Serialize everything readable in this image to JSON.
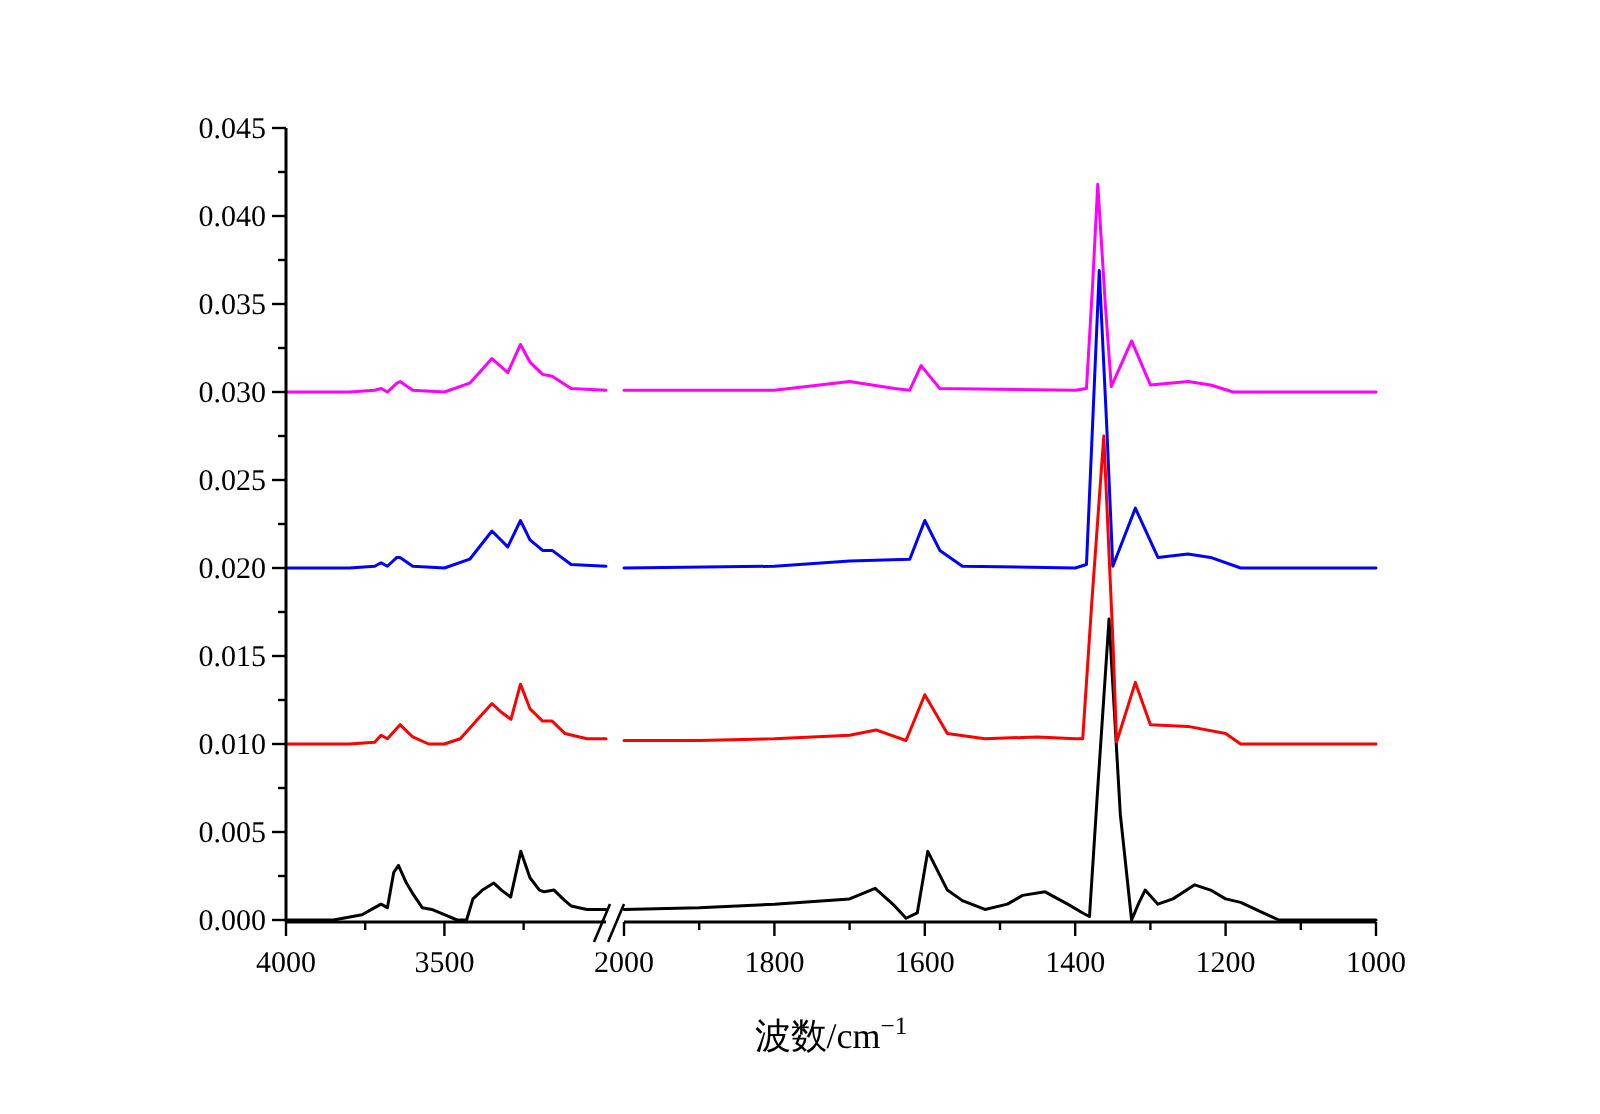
{
  "chart_data": [
    {
      "type": "line",
      "xlim": [
        4000,
        2990
      ],
      "ylim": [
        0,
        0.045
      ],
      "xticks": [
        4000,
        {
          "value": 3750,
          "label": null
        },
        3500,
        {
          "value": 3250,
          "label": null
        }
      ],
      "yticks": [
        {
          "value": 0,
          "label": "0.000"
        },
        {
          "value": 0.0025,
          "label": null
        },
        {
          "value": 0.005,
          "label": "0.005"
        },
        {
          "value": 0.0075,
          "label": null
        },
        {
          "value": 0.01,
          "label": "0.010"
        },
        {
          "value": 0.0125,
          "label": null
        },
        {
          "value": 0.015,
          "label": "0.015"
        },
        {
          "value": 0.0175,
          "label": null
        },
        {
          "value": 0.02,
          "label": "0.020"
        },
        {
          "value": 0.0225,
          "label": null
        },
        {
          "value": 0.025,
          "label": "0.025"
        },
        {
          "value": 0.0275,
          "label": null
        },
        {
          "value": 0.03,
          "label": "0.030"
        },
        {
          "value": 0.0325,
          "label": null
        },
        {
          "value": 0.035,
          "label": "0.035"
        },
        {
          "value": 0.0375,
          "label": null
        },
        {
          "value": 0.04,
          "label": "0.040"
        },
        {
          "value": 0.0425,
          "label": null
        },
        {
          "value": 0.045,
          "label": "0.045"
        }
      ],
      "series": [
        {
          "color": "#000000",
          "x": [
            4000,
            3850,
            3760,
            3720,
            3700,
            3680,
            3660,
            3645,
            3620,
            3600,
            3570,
            3540,
            3500,
            3460,
            3430,
            3410,
            3380,
            3344,
            3320,
            3291,
            3259,
            3230,
            3200,
            3185,
            3154,
            3120,
            3100,
            3050,
            2990
          ],
          "values": [
            0,
            0,
            0.0003,
            0.0007,
            0.0009,
            0.0007,
            0.0027,
            0.0031,
            0.0021,
            0.0015,
            0.0007,
            0.0006,
            0.0003,
            0,
            0,
            0.0012,
            0.0017,
            0.0021,
            0.0017,
            0.0013,
            0.0039,
            0.0024,
            0.0017,
            0.0016,
            0.0017,
            0.0011,
            0.0008,
            0.0006,
            0.0006
          ]
        },
        {
          "color": "#ff0000",
          "x": [
            4000,
            3800,
            3720,
            3700,
            3680,
            3650,
            3640,
            3600,
            3550,
            3500,
            3450,
            3400,
            3350,
            3320,
            3290,
            3260,
            3230,
            3190,
            3160,
            3120,
            3050,
            2990
          ],
          "values": [
            0.01,
            0.01,
            0.0101,
            0.0105,
            0.0103,
            0.0109,
            0.0111,
            0.0104,
            0.01,
            0.01,
            0.0103,
            0.0113,
            0.0123,
            0.0118,
            0.0114,
            0.0134,
            0.012,
            0.0113,
            0.0113,
            0.0106,
            0.0103,
            0.0103
          ]
        },
        {
          "color": "#0000ff",
          "x": [
            4000,
            3800,
            3720,
            3700,
            3680,
            3650,
            3640,
            3600,
            3500,
            3420,
            3350,
            3300,
            3260,
            3230,
            3190,
            3160,
            3100,
            2990
          ],
          "values": [
            0.02,
            0.02,
            0.0201,
            0.0203,
            0.0201,
            0.0206,
            0.0206,
            0.0201,
            0.02,
            0.0205,
            0.0221,
            0.0212,
            0.0227,
            0.0216,
            0.021,
            0.021,
            0.0202,
            0.0201
          ]
        },
        {
          "color": "#ff00ff",
          "x": [
            4000,
            3800,
            3720,
            3700,
            3680,
            3650,
            3640,
            3600,
            3500,
            3420,
            3350,
            3300,
            3260,
            3230,
            3190,
            3160,
            3100,
            2990
          ],
          "values": [
            0.03,
            0.03,
            0.0301,
            0.0302,
            0.03,
            0.0305,
            0.0306,
            0.0301,
            0.03,
            0.0305,
            0.0319,
            0.0311,
            0.0327,
            0.0317,
            0.031,
            0.0309,
            0.0302,
            0.0301
          ]
        }
      ]
    },
    {
      "type": "line",
      "xlim": [
        2000,
        1000
      ],
      "ylim": [
        0,
        0.045
      ],
      "tick_labels": "x",
      "xlabel": "波数/cm$^{−1}$",
      "xticks": [
        2000,
        {
          "value": 1900,
          "label": null
        },
        1800,
        {
          "value": 1700,
          "label": null
        },
        1600,
        {
          "value": 1500,
          "label": null
        },
        1400,
        {
          "value": 1300,
          "label": null
        },
        1200,
        {
          "value": 1100,
          "label": null
        },
        1000
      ],
      "series": [
        {
          "color": "#000000",
          "x": [
            2000,
            1900,
            1800,
            1700,
            1666,
            1640,
            1625,
            1610,
            1596,
            1570,
            1550,
            1520,
            1490,
            1470,
            1440,
            1410,
            1390,
            1381,
            1370,
            1355,
            1340,
            1325,
            1315,
            1307,
            1290,
            1270,
            1241,
            1220,
            1200,
            1180,
            1150,
            1129,
            1000
          ],
          "values": [
            0.0006,
            0.0007,
            0.0009,
            0.0012,
            0.0018,
            0.0008,
            0.0001,
            0.0004,
            0.0039,
            0.0017,
            0.0011,
            0.0006,
            0.0009,
            0.0014,
            0.0016,
            0.0009,
            0.0004,
            0.0002,
            0.0075,
            0.0171,
            0.006,
            0,
            0.001,
            0.0017,
            0.0009,
            0.0012,
            0.002,
            0.0017,
            0.0012,
            0.001,
            0.0004,
            0,
            0
          ]
        },
        {
          "color": "#ff0000",
          "x": [
            2000,
            1900,
            1800,
            1700,
            1665,
            1625,
            1600,
            1570,
            1520,
            1450,
            1400,
            1390,
            1378,
            1362,
            1350,
            1345,
            1320,
            1300,
            1250,
            1200,
            1180,
            1000
          ],
          "values": [
            0.0102,
            0.0102,
            0.0103,
            0.0105,
            0.0108,
            0.0102,
            0.0128,
            0.0106,
            0.0103,
            0.0104,
            0.0103,
            0.0103,
            0.018,
            0.0275,
            0.016,
            0.0101,
            0.0135,
            0.0111,
            0.011,
            0.0106,
            0.01,
            0.01
          ]
        },
        {
          "color": "#0000ff",
          "x": [
            2000,
            1800,
            1700,
            1620,
            1600,
            1580,
            1550,
            1400,
            1385,
            1376,
            1368,
            1358,
            1350,
            1320,
            1290,
            1250,
            1220,
            1180,
            1000
          ],
          "values": [
            0.02,
            0.0201,
            0.0204,
            0.0205,
            0.0227,
            0.021,
            0.0201,
            0.02,
            0.0202,
            0.029,
            0.0369,
            0.028,
            0.0201,
            0.0234,
            0.0206,
            0.0208,
            0.0206,
            0.02,
            0.02
          ]
        },
        {
          "color": "#ff00ff",
          "x": [
            2000,
            1800,
            1700,
            1640,
            1620,
            1605,
            1580,
            1400,
            1385,
            1377,
            1370,
            1360,
            1352,
            1325,
            1300,
            1250,
            1220,
            1190,
            1000
          ],
          "values": [
            0.0301,
            0.0301,
            0.0306,
            0.0302,
            0.0301,
            0.0315,
            0.0302,
            0.0301,
            0.0302,
            0.036,
            0.0418,
            0.035,
            0.0303,
            0.0329,
            0.0304,
            0.0306,
            0.0304,
            0.03,
            0.03
          ]
        }
      ]
    }
  ]
}
